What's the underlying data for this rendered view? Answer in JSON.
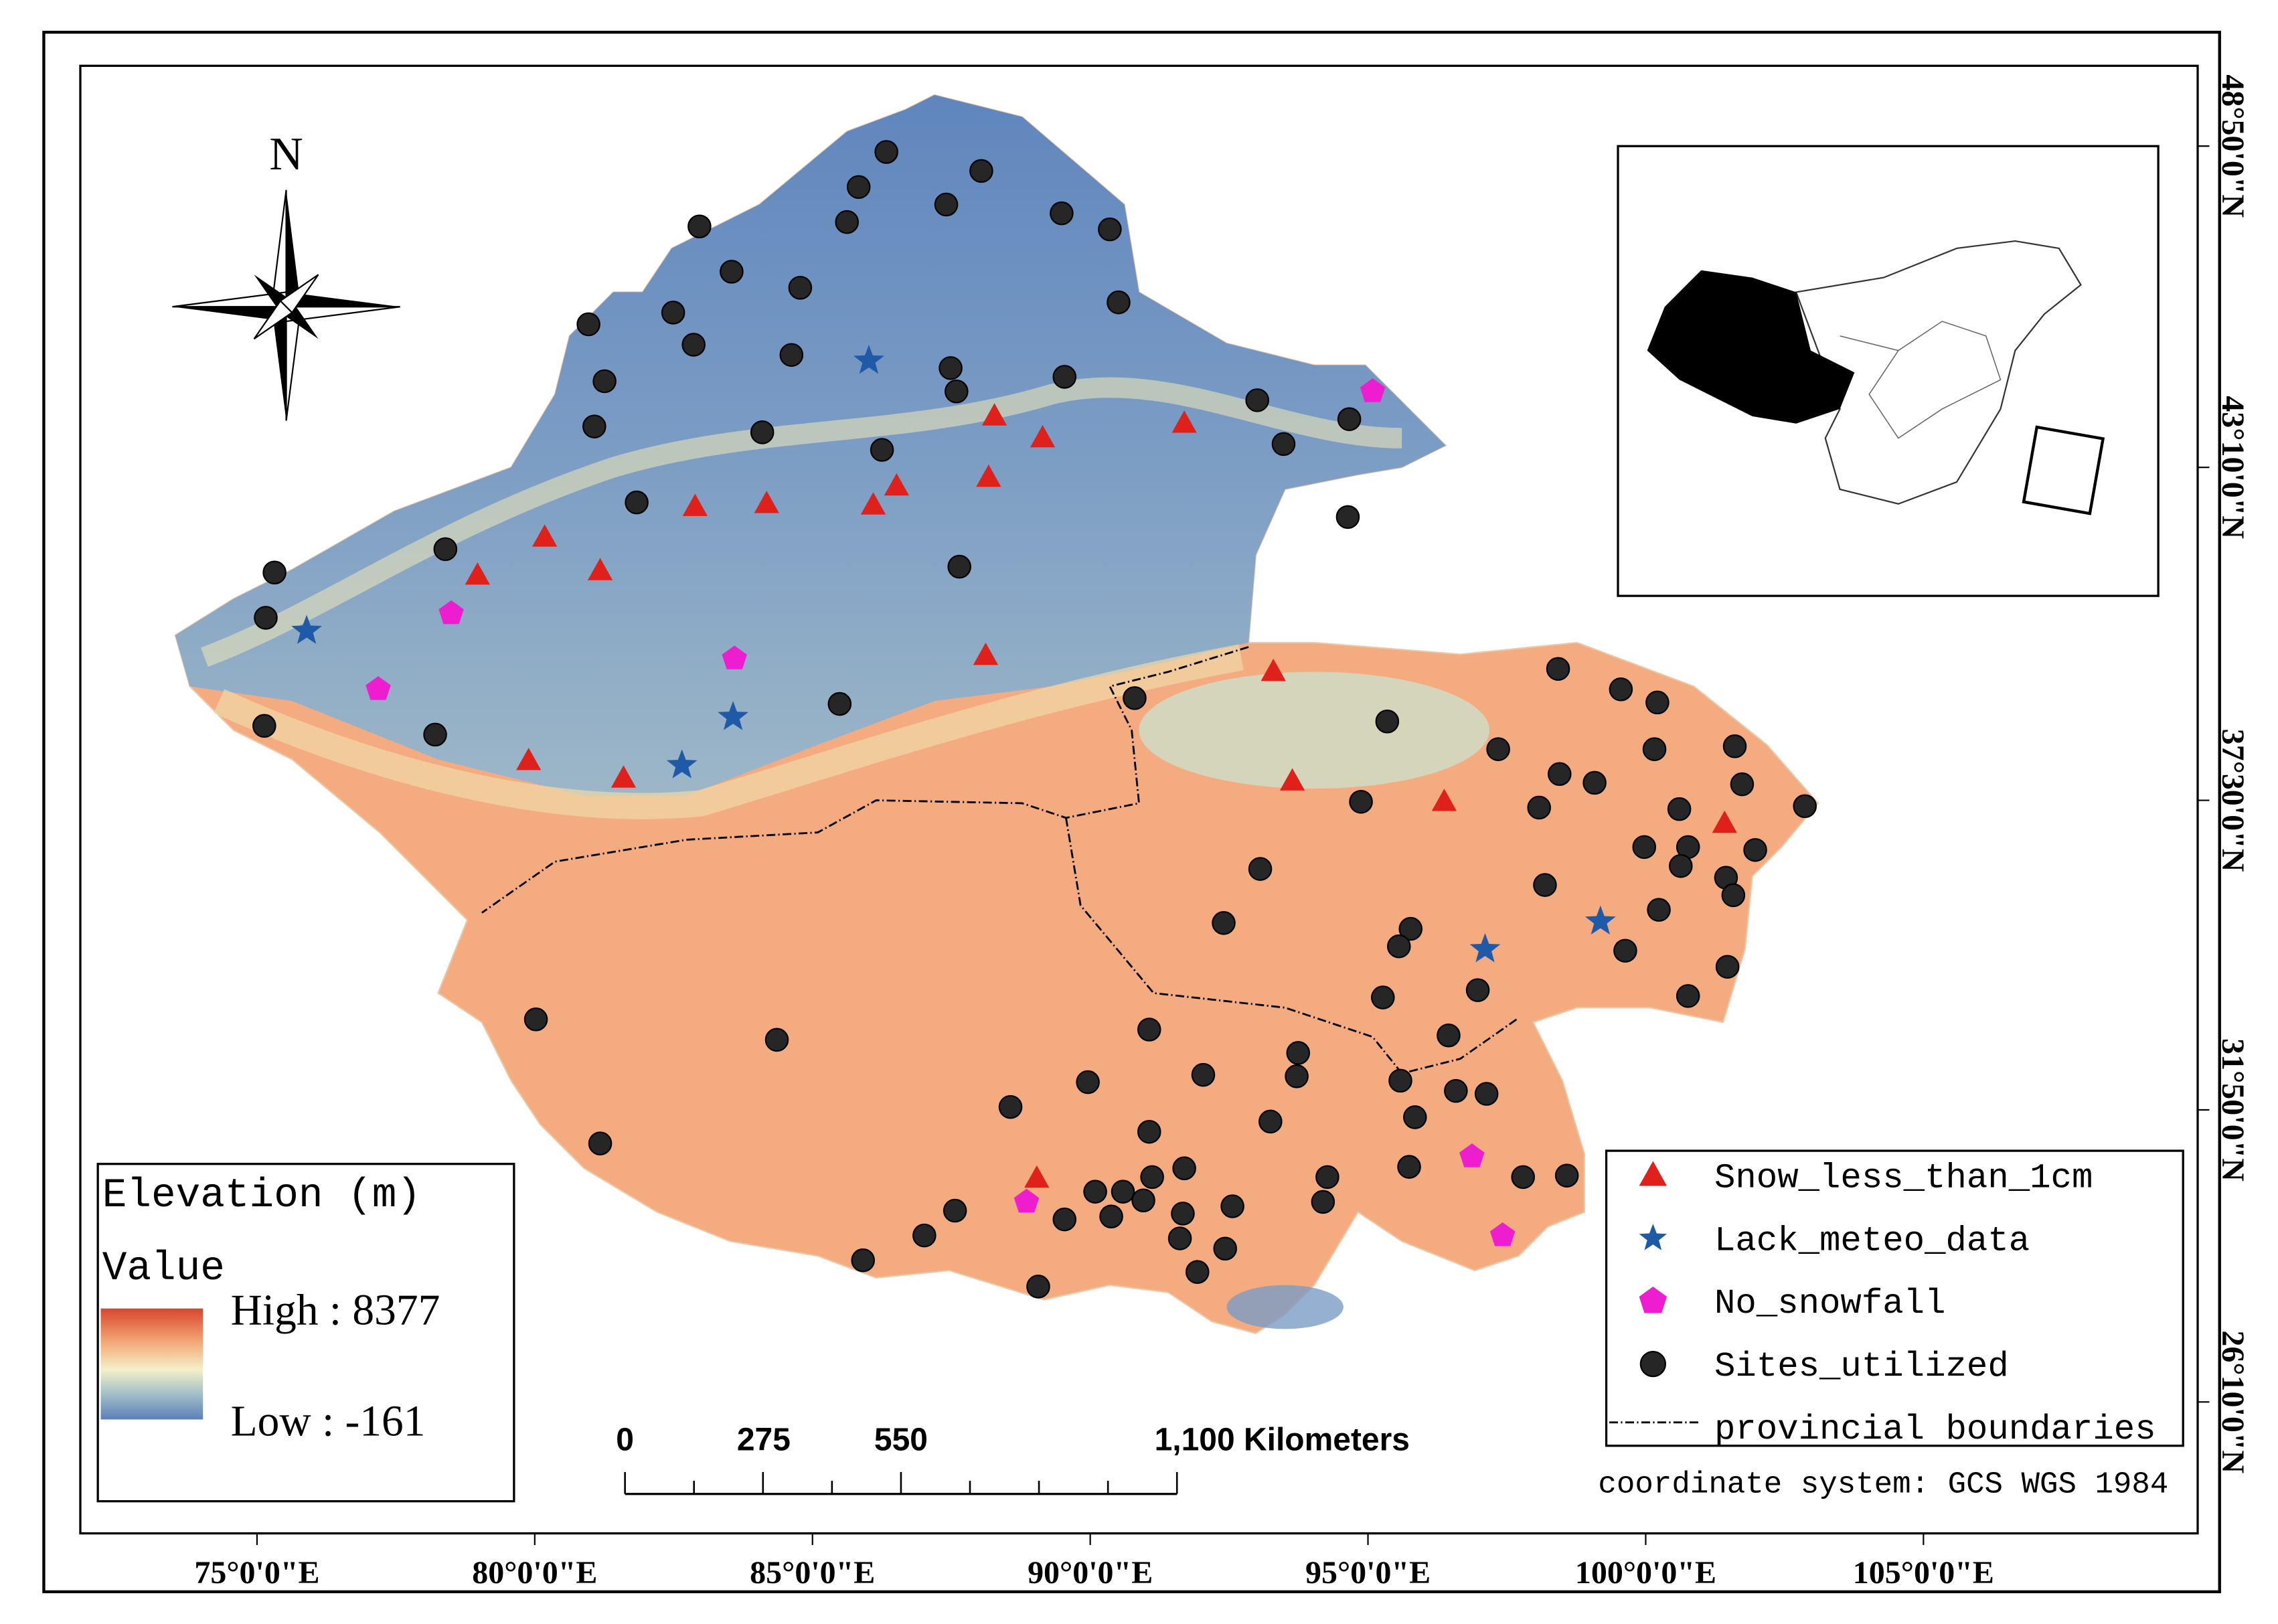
{
  "map": {
    "north_label": "N",
    "longitude_labels": [
      "75°0'0\"E",
      "80°0'0\"E",
      "85°0'0\"E",
      "90°0'0\"E",
      "95°0'0\"E",
      "100°0'0\"E",
      "105°0'0\"E"
    ],
    "latitude_labels": [
      "48°50'0\"N",
      "43°10'0\"N",
      "37°30'0\"N",
      "31°50'0\"N",
      "26°10'0\"N"
    ],
    "elevation_legend": {
      "title": "Elevation (m)",
      "subtitle": "Value",
      "high": "High : 8377",
      "low": "Low : -161"
    },
    "legend": [
      "Snow_less_than_1cm",
      "Lack_meteo_data",
      "No_snowfall",
      "Sites_utilized",
      "provincial boundaries"
    ],
    "scale_bar": [
      "0",
      "275",
      "550",
      "1,100 Kilometers"
    ],
    "coordinate_system": "coordinate system: GCS WGS 1984"
  }
}
